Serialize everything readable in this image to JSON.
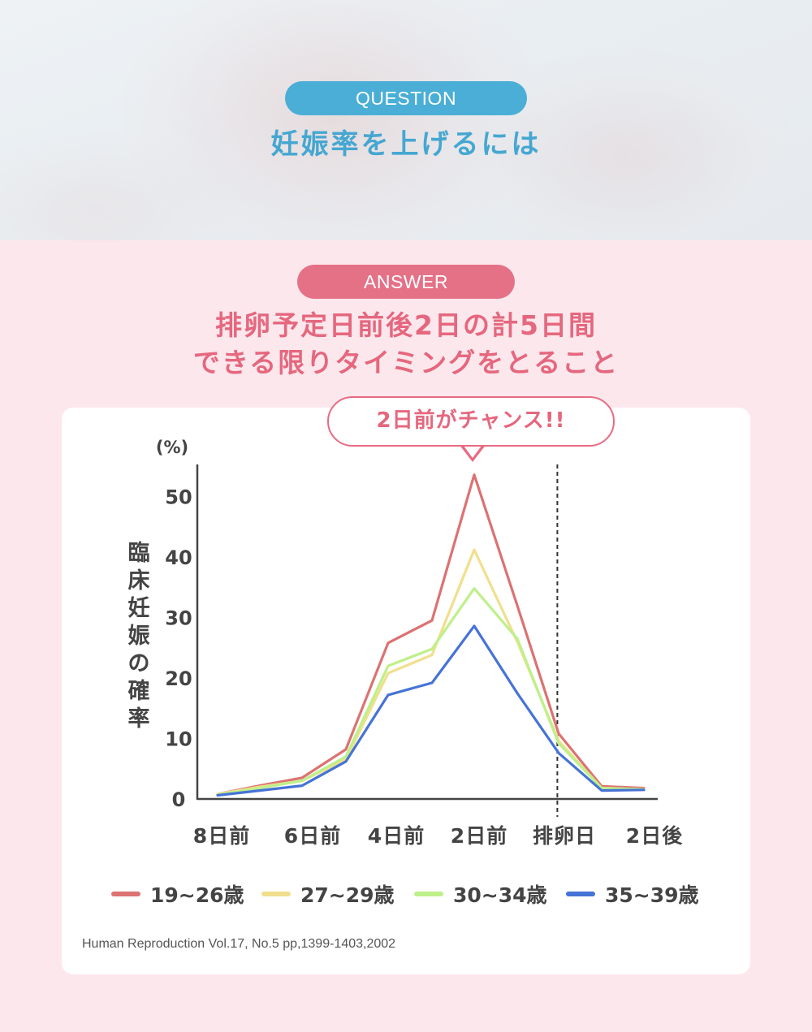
{
  "question": {
    "badge": "QUESTION",
    "title": "妊娠率を上げるには"
  },
  "answer": {
    "badge": "ANSWER",
    "line1": "排卵予定日前後2日の計5日間",
    "line2": "できる限りタイミングをとること"
  },
  "callout": "2日前がチャンス!!",
  "colors": {
    "question_blue": "#4aaed6",
    "answer_pink": "#e57187",
    "page_bg": "#fce7ec"
  },
  "chart_data": {
    "type": "line",
    "title": "",
    "ylabel": "臨床妊娠の確率",
    "yunit": "(%)",
    "xlabel": "",
    "ylim": [
      0,
      55
    ],
    "yticks": [
      0,
      10,
      20,
      30,
      40,
      50
    ],
    "x_tick_labels": [
      "8日前",
      "6日前",
      "4日前",
      "2日前",
      "排卵日",
      "2日後"
    ],
    "x": [
      -8,
      -7,
      -6,
      -5,
      -4,
      -3,
      -2,
      -1,
      0,
      1,
      2
    ],
    "ovulation_marker_x": 0,
    "grid": false,
    "legend_position": "bottom",
    "series": [
      {
        "name": "19~26歳",
        "color": "#dc7272",
        "values": [
          0.8,
          2.2,
          3.5,
          8.2,
          25.8,
          29.5,
          53.6,
          32,
          10.8,
          2.1,
          1.8
        ]
      },
      {
        "name": "27~29歳",
        "color": "#f1df8e",
        "values": [
          0.8,
          2.0,
          3.0,
          6.5,
          20.8,
          23.8,
          41.2,
          26,
          9.6,
          1.8,
          1.6
        ]
      },
      {
        "name": "30~34歳",
        "color": "#bef08a",
        "values": [
          0.7,
          1.8,
          3.0,
          7.0,
          22.0,
          24.8,
          34.8,
          26.5,
          9.2,
          1.8,
          1.6
        ]
      },
      {
        "name": "35~39歳",
        "color": "#4673d6",
        "values": [
          0.6,
          1.4,
          2.2,
          6.2,
          17.2,
          19.2,
          28.6,
          17.5,
          7.6,
          1.4,
          1.5
        ]
      }
    ]
  },
  "source": "Human Reproduction Vol.17, No.5 pp,1399-1403,2002"
}
